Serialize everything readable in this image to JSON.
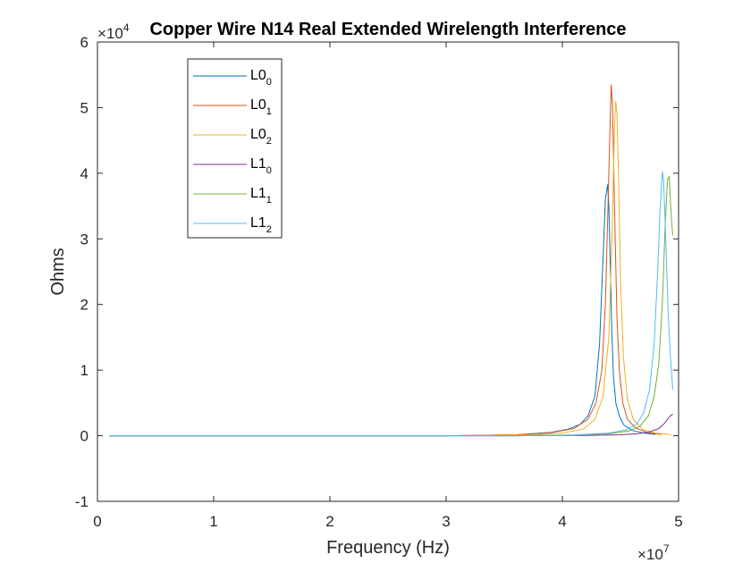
{
  "chart_data": {
    "type": "line",
    "title": "Copper Wire N14 Real Extended Wirelength Interference",
    "xlabel": "Frequency (Hz)",
    "ylabel": "Ohms",
    "x_exponent_label": "×10",
    "x_exponent": "7",
    "y_exponent_label": "×10",
    "y_exponent": "4",
    "xlim": [
      0,
      50000000
    ],
    "ylim": [
      -10000,
      60000
    ],
    "xticks": [
      0,
      10000000,
      20000000,
      30000000,
      40000000,
      50000000
    ],
    "xtick_labels": [
      "0",
      "1",
      "2",
      "3",
      "4",
      "5"
    ],
    "yticks": [
      -10000,
      0,
      10000,
      20000,
      30000,
      40000,
      50000,
      60000
    ],
    "ytick_labels": [
      "-1",
      "0",
      "1",
      "2",
      "3",
      "4",
      "5",
      "6"
    ],
    "grid": false,
    "legend_position": "top-left",
    "series": [
      {
        "name": "L0",
        "subscript": "0",
        "color": "#0072BD",
        "x": [
          1000000,
          30000000,
          36000000,
          39000000,
          40500000,
          41500000,
          42200000,
          42800000,
          43200000,
          43500000,
          43700000,
          43900000,
          44000000,
          44100000,
          44250000,
          44400000,
          44600000,
          44900000,
          45300000,
          46000000,
          47000000,
          48000000
        ],
        "y": [
          0,
          0,
          150,
          500,
          1000,
          1700,
          3000,
          6000,
          14000,
          27000,
          36000,
          38300,
          35000,
          28000,
          16000,
          9000,
          5000,
          3000,
          1600,
          800,
          400,
          200
        ]
      },
      {
        "name": "L0",
        "subscript": "1",
        "color": "#D95319",
        "x": [
          1000000,
          30000000,
          36000000,
          39000000,
          41000000,
          42200000,
          42900000,
          43400000,
          43700000,
          43900000,
          44100000,
          44200000,
          44300000,
          44400000,
          44550000,
          44700000,
          44900000,
          45200000,
          45600000,
          46300000,
          47300000,
          48500000
        ],
        "y": [
          0,
          0,
          130,
          450,
          1100,
          2500,
          5000,
          10000,
          20000,
          33000,
          47000,
          53500,
          51000,
          43000,
          30000,
          18000,
          10000,
          5000,
          2500,
          1200,
          500,
          200
        ]
      },
      {
        "name": "L0",
        "subscript": "2",
        "color": "#EDB120",
        "x": [
          1000000,
          30000000,
          37000000,
          40000000,
          41800000,
          42800000,
          43500000,
          44000000,
          44300000,
          44500000,
          44600000,
          44700000,
          44850000,
          45000000,
          45250000,
          45600000,
          46100000,
          46900000,
          48000000,
          49400000
        ],
        "y": [
          0,
          0,
          110,
          400,
          1000,
          2500,
          6000,
          15000,
          32000,
          48000,
          51000,
          49000,
          38000,
          24000,
          12000,
          5500,
          2500,
          1000,
          400,
          150
        ]
      },
      {
        "name": "L1",
        "subscript": "0",
        "color": "#7E2F8E",
        "x": [
          1000000,
          35000000,
          42000000,
          45000000,
          46500000,
          47500000,
          48300000,
          48800000,
          49200000,
          49500000
        ],
        "y": [
          0,
          0,
          50,
          150,
          300,
          600,
          1100,
          1900,
          2900,
          3300
        ]
      },
      {
        "name": "L1",
        "subscript": "1",
        "color": "#77AC30",
        "x": [
          1000000,
          36000000,
          41000000,
          44000000,
          45700000,
          46700000,
          47400000,
          47900000,
          48300000,
          48600000,
          48850000,
          49050000,
          49200000,
          49350000,
          49500000
        ],
        "y": [
          0,
          0,
          100,
          300,
          700,
          1500,
          3000,
          6000,
          11000,
          20000,
          32000,
          39000,
          39500,
          34000,
          30500
        ]
      },
      {
        "name": "L1",
        "subscript": "2",
        "color": "#4DBEEE",
        "x": [
          1000000,
          36000000,
          41000000,
          44000000,
          45500000,
          46400000,
          47000000,
          47500000,
          47900000,
          48200000,
          48400000,
          48600000,
          48700000,
          48800000,
          48950000,
          49100000,
          49300000,
          49500000
        ],
        "y": [
          0,
          0,
          120,
          400,
          900,
          1800,
          3500,
          7000,
          14000,
          25000,
          34000,
          40300,
          39000,
          35000,
          27000,
          19000,
          12000,
          7000
        ]
      }
    ]
  }
}
